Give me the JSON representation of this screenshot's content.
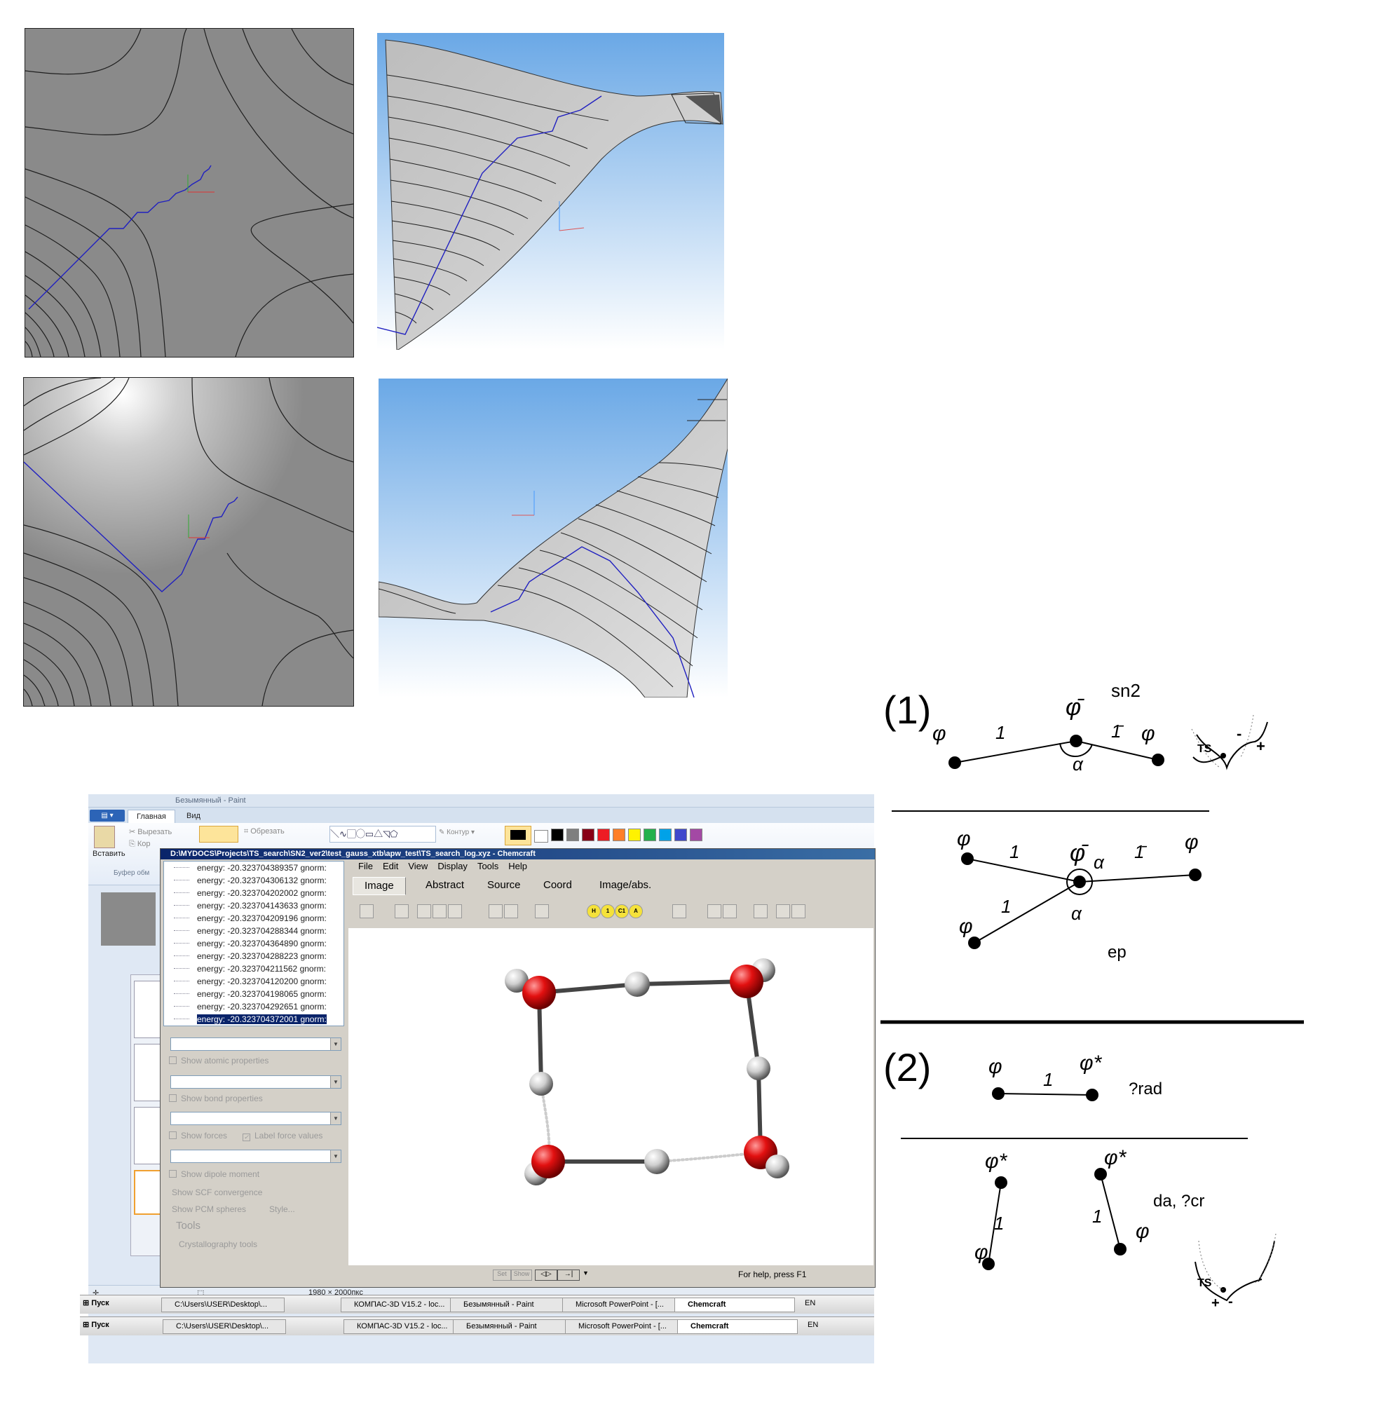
{
  "paint": {
    "title": "Безымянный - Paint",
    "tabs": [
      "Главная",
      "Вид"
    ],
    "ribbon": {
      "paste": "Вставить",
      "cut": "Вырезать",
      "copy": "Кор",
      "crop": "Обрезать",
      "clipboard_group": "Буфер обм",
      "contour": "Контур"
    },
    "status": {
      "size": "1980 × 2000пкс"
    },
    "palette": [
      "#000000",
      "#7f7f7f",
      "#880015",
      "#ed1c24",
      "#ff7f27",
      "#fff200",
      "#22b14c",
      "#00a2e8",
      "#3f48cc",
      "#a349a4"
    ]
  },
  "chemcraft": {
    "title": "D:\\MYDOCS\\Projects\\TS_search\\SN2_ver2\\test_gauss_xtb\\apw_test\\TS_search_log.xyz - Chemcraft",
    "menu": [
      "File",
      "Edit",
      "View",
      "Display",
      "Tools",
      "Help"
    ],
    "tabs": [
      "Image",
      "Abstract",
      "Source",
      "Coord",
      "Image/abs."
    ],
    "energies": [
      "energy: -20.323704389357 gnorm:",
      "energy: -20.323704306132 gnorm:",
      "energy: -20.323704202002 gnorm:",
      "energy: -20.323704143633 gnorm:",
      "energy: -20.323704209196 gnorm:",
      "energy: -20.323704288344 gnorm:",
      "energy: -20.323704364890 gnorm:",
      "energy: -20.323704288223 gnorm:",
      "energy: -20.323704211562 gnorm:",
      "energy: -20.323704120200 gnorm:",
      "energy: -20.323704198065 gnorm:",
      "energy: -20.323704292651 gnorm:",
      "energy: -20.323704372001 gnorm:"
    ],
    "selected_index": 12,
    "options": {
      "atomic": "Show atomic properties",
      "bond": "Show bond properties",
      "forces": "Show forces",
      "label_force": "Label force values",
      "dipole": "Show dipole moment",
      "scf": "Show SCF convergence",
      "pcm": "Show PCM spheres",
      "style": "Style...",
      "tools": "Tools",
      "crystal": "Crystallography tools"
    },
    "toolbar_letters": [
      "H",
      "1",
      "C1",
      "A"
    ],
    "status": "For help, press F1",
    "status_buttons": [
      "Set",
      "Show"
    ]
  },
  "taskbar": {
    "start": "Пуск",
    "items": [
      "C:\\Users\\USER\\Desktop\\...",
      "КОМПАС-3D V15.2  - loc...",
      "Безымянный - Paint",
      "Microsoft PowerPoint - [...",
      "Chemcraft"
    ],
    "lang": "EN"
  },
  "sketch": {
    "s1_label": "(1)",
    "s1_title": "sn2",
    "phi": "φ",
    "phi_bar": "φ̄",
    "one": "1",
    "one_bar": "1̄",
    "alpha": "α",
    "ts": "TS",
    "plus": "+",
    "minus": "-",
    "ep": "ep",
    "s2_label": "(2)",
    "phi_star": "φ*",
    "rad": "?rad",
    "dacr": "da, ?cr"
  }
}
